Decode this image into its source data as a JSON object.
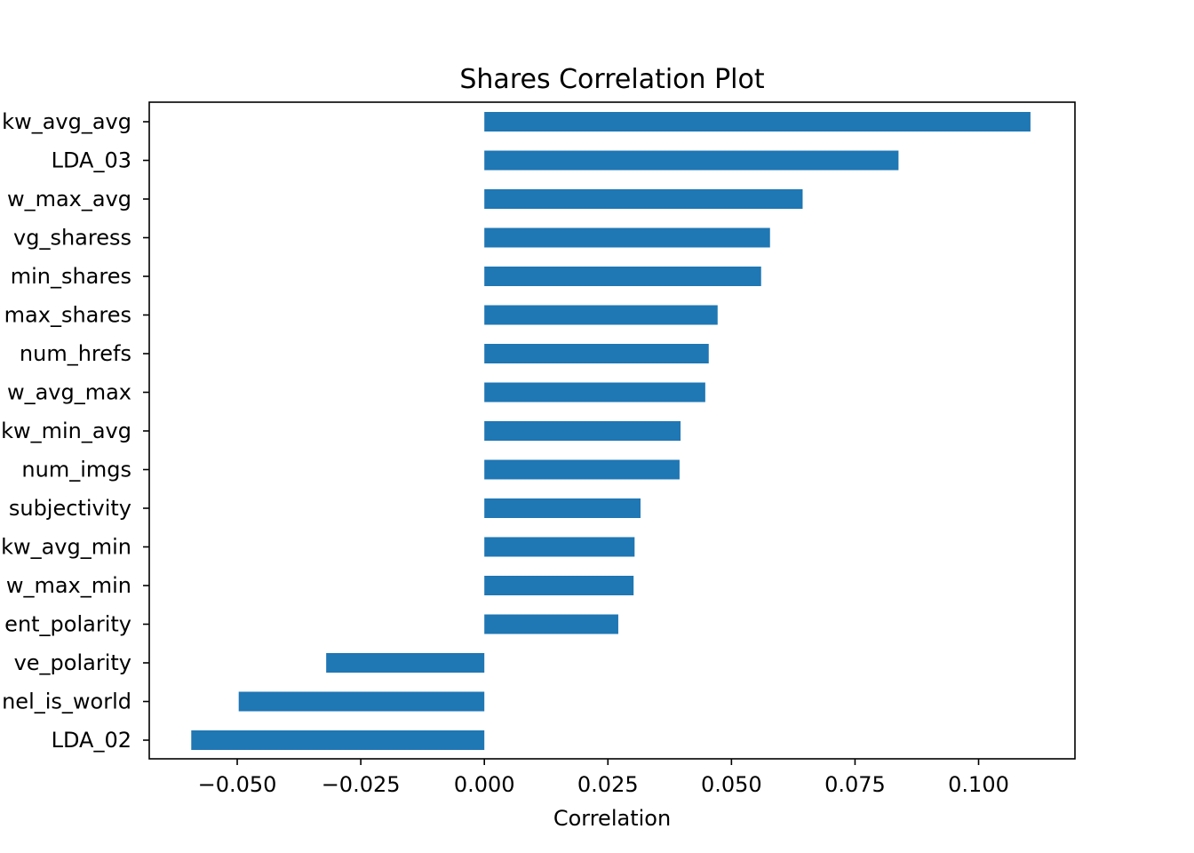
{
  "chart_data": {
    "type": "bar",
    "orientation": "horizontal",
    "title": "Shares Correlation Plot",
    "xlabel": "Correlation",
    "ylabel": "",
    "xlim": [
      -0.0678,
      0.1195
    ],
    "xticks": [
      -0.05,
      -0.025,
      0.0,
      0.025,
      0.05,
      0.075,
      0.1
    ],
    "xtick_labels": [
      "−0.050",
      "−0.025",
      "0.000",
      "0.025",
      "0.050",
      "0.075",
      "0.100"
    ],
    "grid": false,
    "legend": "none",
    "bar_color": "#1f77b4",
    "categories": [
      "kw_avg_avg",
      "LDA_03",
      "kw_max_avg",
      "self_reference_avg_sharess",
      "self_reference_min_shares",
      "self_reference_max_shares",
      "num_hrefs",
      "kw_avg_max",
      "kw_min_avg",
      "num_imgs",
      "global_subjectivity",
      "kw_avg_min",
      "kw_max_min",
      "global_sentiment_polarity",
      "avg_negative_polarity",
      "data_channel_is_world",
      "LDA_02"
    ],
    "category_labels_visible": [
      "kw_avg_avg",
      "LDA_03",
      "w_max_avg",
      "vg_sharess",
      "min_shares",
      "max_shares",
      "num_hrefs",
      "w_avg_max",
      "kw_min_avg",
      "num_imgs",
      "subjectivity",
      "kw_avg_min",
      "w_max_min",
      "ent_polarity",
      "ve_polarity",
      "nel_is_world",
      "LDA_02"
    ],
    "values": [
      0.1105,
      0.0838,
      0.0644,
      0.0578,
      0.056,
      0.0472,
      0.0454,
      0.0447,
      0.0397,
      0.0395,
      0.0316,
      0.0304,
      0.0302,
      0.0271,
      -0.032,
      -0.0497,
      -0.0593
    ]
  }
}
